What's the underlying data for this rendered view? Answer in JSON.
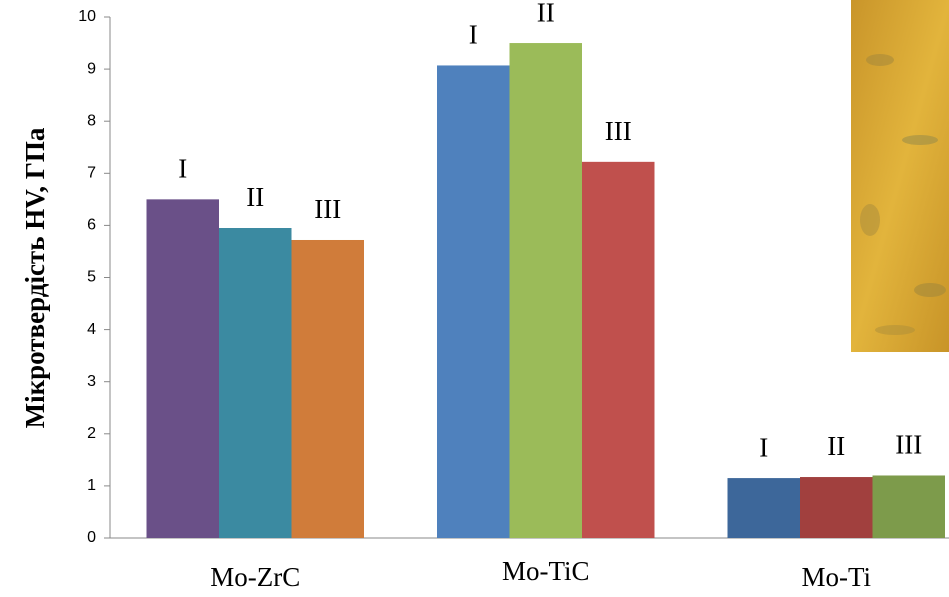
{
  "chart_data": {
    "type": "bar",
    "y_label": "Мікротвердість HV, ГПа",
    "categories": [
      "Mo-ZrC",
      "Mo-TiC",
      "Mo-Ti"
    ],
    "series": [
      {
        "name": "I",
        "colors": [
          "#6a5088",
          "#4f81bd",
          "#3d679a"
        ],
        "values": [
          6.5,
          9.07,
          1.15
        ]
      },
      {
        "name": "II",
        "colors": [
          "#3b8aa1",
          "#9bbb59",
          "#a1403e"
        ],
        "values": [
          5.95,
          9.5,
          1.17
        ]
      },
      {
        "name": "III",
        "colors": [
          "#d07c3a",
          "#c0504d",
          "#7d9b4b"
        ],
        "values": [
          5.72,
          7.22,
          1.2
        ]
      }
    ],
    "ylim": [
      0,
      10
    ],
    "yticks": [
      0,
      1,
      2,
      3,
      4,
      5,
      6,
      7,
      8,
      9,
      10
    ],
    "grid": false
  }
}
